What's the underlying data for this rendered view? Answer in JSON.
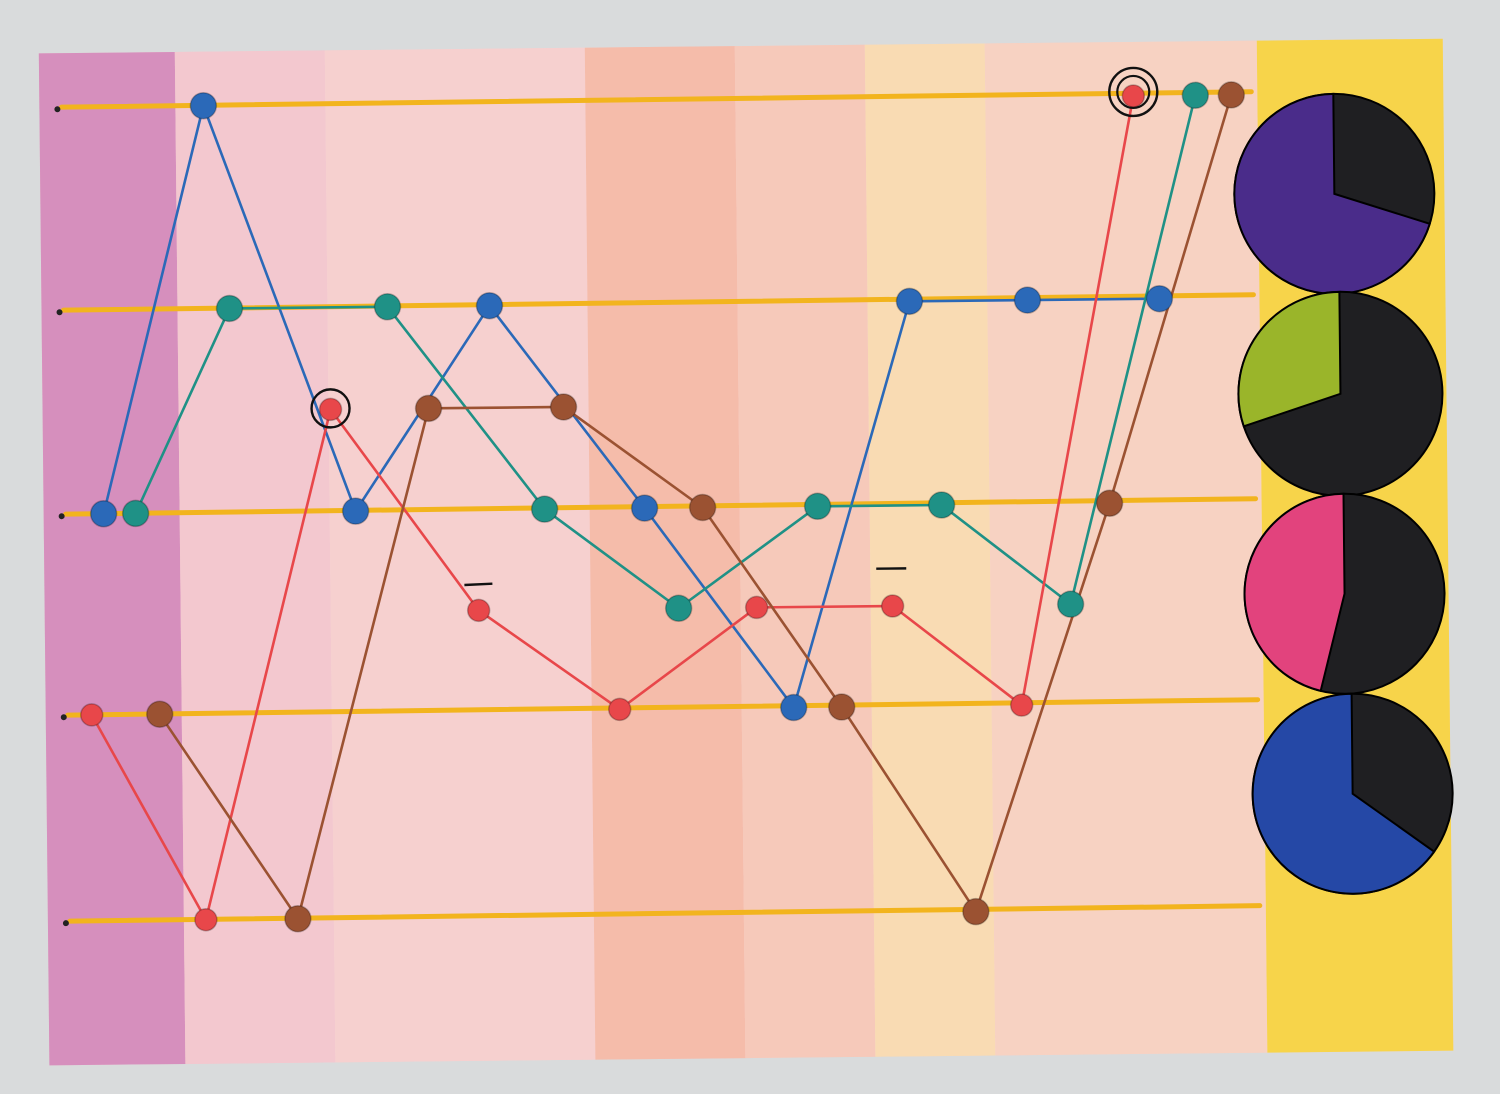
{
  "background_color": "#d9dbdc",
  "paper": {
    "base_color": "#f6d3cf",
    "bands": [
      {
        "name": "magenta-band",
        "color": "#c765a9"
      },
      {
        "name": "pink-band-1",
        "color": "#f0b7c3"
      },
      {
        "name": "pink-band-2",
        "color": "#f3c3c3"
      },
      {
        "name": "salmon-band-1",
        "color": "#f2a68e"
      },
      {
        "name": "salmon-band-2",
        "color": "#f3b9a4"
      },
      {
        "name": "orange-yellow-band",
        "color": "#f8d49b"
      },
      {
        "name": "peach-band",
        "color": "#f6c5b0"
      }
    ],
    "side_strip_color": "#f7d44a"
  },
  "guide_line_color": "#f2b41e",
  "level_count": 5,
  "lines": [
    {
      "name": "blue",
      "color": "#2b69b8",
      "points": [
        [
          0,
          2
        ],
        [
          1,
          0
        ],
        [
          2,
          2
        ],
        [
          3,
          1
        ],
        [
          4,
          2
        ],
        [
          5,
          3
        ],
        [
          6,
          1
        ],
        [
          7,
          1
        ],
        [
          8,
          1
        ]
      ]
    },
    {
      "name": "teal",
      "color": "#1f9186",
      "points": [
        [
          0,
          2
        ],
        [
          1,
          1
        ],
        [
          2,
          1
        ],
        [
          3,
          2
        ],
        [
          4,
          2.5
        ],
        [
          5,
          2
        ],
        [
          6,
          2
        ],
        [
          7,
          2.5
        ],
        [
          8,
          0
        ]
      ]
    },
    {
      "name": "red",
      "color": "#e8474a",
      "points": [
        [
          0,
          3
        ],
        [
          1,
          4
        ],
        [
          2,
          1.5
        ],
        [
          3,
          2.5
        ],
        [
          4,
          3
        ],
        [
          5,
          2.5
        ],
        [
          6,
          2.5
        ],
        [
          7,
          3
        ],
        [
          8,
          0
        ]
      ]
    },
    {
      "name": "brown",
      "color": "#9b5232",
      "points": [
        [
          0,
          3
        ],
        [
          1,
          4
        ],
        [
          2,
          1.5
        ],
        [
          3,
          1.5
        ],
        [
          4,
          2
        ],
        [
          5,
          3
        ],
        [
          6,
          4
        ],
        [
          7,
          2
        ],
        [
          8,
          0
        ]
      ]
    }
  ],
  "pies": [
    {
      "name": "purple-pie",
      "color": "#4a2c8a",
      "fraction": 0.7
    },
    {
      "name": "green-pie",
      "color": "#9ab52a",
      "fraction": 0.3
    },
    {
      "name": "pink-pie",
      "color": "#e2437d",
      "fraction": 0.46
    },
    {
      "name": "blue-pie",
      "color": "#2548a6",
      "fraction": 0.65
    }
  ]
}
